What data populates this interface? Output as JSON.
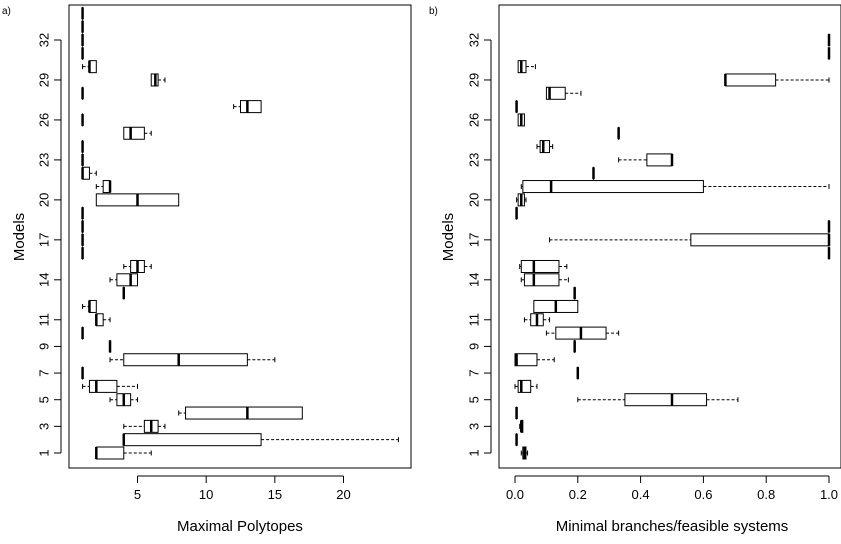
{
  "chart_data": [
    {
      "panel_label": "a)",
      "type": "boxplot",
      "orientation": "horizontal",
      "xlabel": "Maximal Polytopes",
      "ylabel": "Models",
      "xlim": [
        0,
        25
      ],
      "x_ticks": [
        "5",
        "10",
        "15",
        "20"
      ],
      "x_tick_values": [
        5,
        10,
        15,
        20
      ],
      "ylim": [
        0,
        35
      ],
      "y_ticks": [
        "1",
        "3",
        "5",
        "7",
        "9",
        "11",
        "14",
        "17",
        "20",
        "23",
        "26",
        "29",
        "32"
      ],
      "y_tick_values": [
        1,
        3,
        5,
        7,
        9,
        11,
        14,
        17,
        20,
        23,
        26,
        29,
        32
      ],
      "boxes": [
        {
          "model": 1,
          "min": 2,
          "q1": 2,
          "median": 2,
          "q3": 4,
          "max": 6
        },
        {
          "model": 2,
          "min": 4,
          "q1": 4,
          "median": 4,
          "q3": 14,
          "max": 24
        },
        {
          "model": 3,
          "min": 4,
          "q1": 5.5,
          "median": 6,
          "q3": 6.5,
          "max": 7
        },
        {
          "model": 4,
          "min": 8,
          "q1": 8.5,
          "median": 13,
          "q3": 17,
          "max": 17
        },
        {
          "model": 5,
          "min": 3,
          "q1": 3.5,
          "median": 4,
          "q3": 4.5,
          "max": 5
        },
        {
          "model": 6,
          "min": 1,
          "q1": 1.5,
          "median": 2,
          "q3": 3.5,
          "max": 5
        },
        {
          "model": 7,
          "min": 1,
          "q1": 1,
          "median": 1,
          "q3": 1,
          "max": 1
        },
        {
          "model": 8,
          "min": 3,
          "q1": 4,
          "median": 8,
          "q3": 13,
          "max": 15
        },
        {
          "model": 9,
          "min": 3,
          "q1": 3,
          "median": 3,
          "q3": 3,
          "max": 3
        },
        {
          "model": 10,
          "min": 1,
          "q1": 1,
          "median": 1,
          "q3": 1,
          "max": 1
        },
        {
          "model": 11,
          "min": 2,
          "q1": 2,
          "median": 2,
          "q3": 2.5,
          "max": 3
        },
        {
          "model": 12,
          "min": 1,
          "q1": 1.5,
          "median": 1.5,
          "q3": 2,
          "max": 2
        },
        {
          "model": 13,
          "min": 4,
          "q1": 4,
          "median": 4,
          "q3": 4,
          "max": 4
        },
        {
          "model": 14,
          "min": 3,
          "q1": 3.5,
          "median": 4.5,
          "q3": 5,
          "max": 5
        },
        {
          "model": 15,
          "min": 4,
          "q1": 4.5,
          "median": 5,
          "q3": 5.5,
          "max": 6
        },
        {
          "model": 16,
          "min": 1,
          "q1": 1,
          "median": 1,
          "q3": 1,
          "max": 1
        },
        {
          "model": 17,
          "min": 1,
          "q1": 1,
          "median": 1,
          "q3": 1,
          "max": 1
        },
        {
          "model": 18,
          "min": 1,
          "q1": 1,
          "median": 1,
          "q3": 1,
          "max": 1
        },
        {
          "model": 19,
          "min": 1,
          "q1": 1,
          "median": 1,
          "q3": 1,
          "max": 1
        },
        {
          "model": 20,
          "min": 2,
          "q1": 2,
          "median": 5,
          "q3": 8,
          "max": 8
        },
        {
          "model": 21,
          "min": 2,
          "q1": 2.5,
          "median": 3,
          "q3": 3,
          "max": 3
        },
        {
          "model": 22,
          "min": 1,
          "q1": 1,
          "median": 1,
          "q3": 1.5,
          "max": 2
        },
        {
          "model": 23,
          "min": 1,
          "q1": 1,
          "median": 1,
          "q3": 1,
          "max": 1
        },
        {
          "model": 24,
          "min": 1,
          "q1": 1,
          "median": 1,
          "q3": 1,
          "max": 1
        },
        {
          "model": 25,
          "min": 4,
          "q1": 4,
          "median": 4.5,
          "q3": 5.5,
          "max": 6
        },
        {
          "model": 26,
          "min": 1,
          "q1": 1,
          "median": 1,
          "q3": 1,
          "max": 1
        },
        {
          "model": 27,
          "min": 12,
          "q1": 12.5,
          "median": 13,
          "q3": 14,
          "max": 14
        },
        {
          "model": 28,
          "min": 1,
          "q1": 1,
          "median": 1,
          "q3": 1,
          "max": 1
        },
        {
          "model": 29,
          "min": 6,
          "q1": 6,
          "median": 6.3,
          "q3": 6.5,
          "max": 7
        },
        {
          "model": 30,
          "min": 1,
          "q1": 1.5,
          "median": 1.5,
          "q3": 2,
          "max": 2
        },
        {
          "model": 31,
          "min": 1,
          "q1": 1,
          "median": 1,
          "q3": 1,
          "max": 1
        },
        {
          "model": 32,
          "min": 1,
          "q1": 1,
          "median": 1,
          "q3": 1,
          "max": 1
        },
        {
          "model": 33,
          "min": 1,
          "q1": 1,
          "median": 1,
          "q3": 1,
          "max": 1
        },
        {
          "model": 34,
          "min": 1,
          "q1": 1,
          "median": 1,
          "q3": 1,
          "max": 1
        }
      ]
    },
    {
      "panel_label": "b)",
      "type": "boxplot",
      "orientation": "horizontal",
      "xlabel": "Minimal branches/feasible systems",
      "ylabel": "Models",
      "xlim": [
        0,
        1
      ],
      "x_ticks": [
        "0.0",
        "0.2",
        "0.4",
        "0.6",
        "0.8",
        "1.0"
      ],
      "x_tick_values": [
        0,
        0.2,
        0.4,
        0.6,
        0.8,
        1.0
      ],
      "ylim": [
        0,
        35
      ],
      "y_ticks": [
        "1",
        "3",
        "5",
        "7",
        "9",
        "11",
        "14",
        "17",
        "20",
        "23",
        "26",
        "29",
        "32"
      ],
      "y_tick_values": [
        1,
        3,
        5,
        7,
        9,
        11,
        14,
        17,
        20,
        23,
        26,
        29,
        32
      ],
      "boxes": [
        {
          "model": 1,
          "min": 0.02,
          "q1": 0.025,
          "median": 0.03,
          "q3": 0.035,
          "max": 0.04
        },
        {
          "model": 2,
          "min": 0.005,
          "q1": 0.005,
          "median": 0.005,
          "q3": 0.005,
          "max": 0.005
        },
        {
          "model": 3,
          "min": 0.015,
          "q1": 0.02,
          "median": 0.02,
          "q3": 0.025,
          "max": 0.025
        },
        {
          "model": 4,
          "min": 0.005,
          "q1": 0.005,
          "median": 0.005,
          "q3": 0.005,
          "max": 0.005
        },
        {
          "model": 5,
          "min": 0.2,
          "q1": 0.35,
          "median": 0.5,
          "q3": 0.61,
          "max": 0.71
        },
        {
          "model": 6,
          "min": 0.0,
          "q1": 0.01,
          "median": 0.02,
          "q3": 0.05,
          "max": 0.07
        },
        {
          "model": 7,
          "min": 0.2,
          "q1": 0.2,
          "median": 0.2,
          "q3": 0.2,
          "max": 0.2
        },
        {
          "model": 8,
          "min": 0.0,
          "q1": 0.0,
          "median": 0.005,
          "q3": 0.07,
          "max": 0.125
        },
        {
          "model": 9,
          "min": 0.19,
          "q1": 0.19,
          "median": 0.19,
          "q3": 0.19,
          "max": 0.19
        },
        {
          "model": 10,
          "min": 0.1,
          "q1": 0.13,
          "median": 0.21,
          "q3": 0.29,
          "max": 0.33
        },
        {
          "model": 11,
          "min": 0.03,
          "q1": 0.05,
          "median": 0.07,
          "q3": 0.09,
          "max": 0.11
        },
        {
          "model": 12,
          "min": 0.06,
          "q1": 0.06,
          "median": 0.13,
          "q3": 0.2,
          "max": 0.2
        },
        {
          "model": 13,
          "min": 0.19,
          "q1": 0.19,
          "median": 0.19,
          "q3": 0.19,
          "max": 0.19
        },
        {
          "model": 14,
          "min": 0.02,
          "q1": 0.03,
          "median": 0.06,
          "q3": 0.14,
          "max": 0.17
        },
        {
          "model": 15,
          "min": 0.015,
          "q1": 0.02,
          "median": 0.06,
          "q3": 0.14,
          "max": 0.165
        },
        {
          "model": 16,
          "min": 1.0,
          "q1": 1.0,
          "median": 1.0,
          "q3": 1.0,
          "max": 1.0
        },
        {
          "model": 17,
          "min": 0.11,
          "q1": 0.56,
          "median": 1.0,
          "q3": 1.0,
          "max": 1.0
        },
        {
          "model": 18,
          "min": 1.0,
          "q1": 1.0,
          "median": 1.0,
          "q3": 1.0,
          "max": 1.0
        },
        {
          "model": 19,
          "min": 0.005,
          "q1": 0.005,
          "median": 0.005,
          "q3": 0.005,
          "max": 0.005
        },
        {
          "model": 20,
          "min": 0.005,
          "q1": 0.01,
          "median": 0.02,
          "q3": 0.03,
          "max": 0.035
        },
        {
          "model": 21,
          "min": 0.02,
          "q1": 0.025,
          "median": 0.115,
          "q3": 0.6,
          "max": 1.0
        },
        {
          "model": 22,
          "min": 0.25,
          "q1": 0.25,
          "median": 0.25,
          "q3": 0.25,
          "max": 0.25
        },
        {
          "model": 23,
          "min": 0.33,
          "q1": 0.42,
          "median": 0.5,
          "q3": 0.5,
          "max": 0.5
        },
        {
          "model": 24,
          "min": 0.07,
          "q1": 0.08,
          "median": 0.09,
          "q3": 0.11,
          "max": 0.12
        },
        {
          "model": 25,
          "min": 0.33,
          "q1": 0.33,
          "median": 0.33,
          "q3": 0.33,
          "max": 0.33
        },
        {
          "model": 26,
          "min": 0.01,
          "q1": 0.01,
          "median": 0.02,
          "q3": 0.03,
          "max": 0.03
        },
        {
          "model": 27,
          "min": 0.005,
          "q1": 0.005,
          "median": 0.005,
          "q3": 0.005,
          "max": 0.005
        },
        {
          "model": 28,
          "min": 0.1,
          "q1": 0.1,
          "median": 0.11,
          "q3": 0.16,
          "max": 0.21
        },
        {
          "model": 29,
          "min": 0.67,
          "q1": 0.67,
          "median": 0.67,
          "q3": 0.83,
          "max": 1.0
        },
        {
          "model": 30,
          "min": 0.01,
          "q1": 0.01,
          "median": 0.02,
          "q3": 0.035,
          "max": 0.065
        },
        {
          "model": 31,
          "min": 1.0,
          "q1": 1.0,
          "median": 1.0,
          "q3": 1.0,
          "max": 1.0
        },
        {
          "model": 32,
          "min": 1.0,
          "q1": 1.0,
          "median": 1.0,
          "q3": 1.0,
          "max": 1.0
        }
      ]
    }
  ]
}
